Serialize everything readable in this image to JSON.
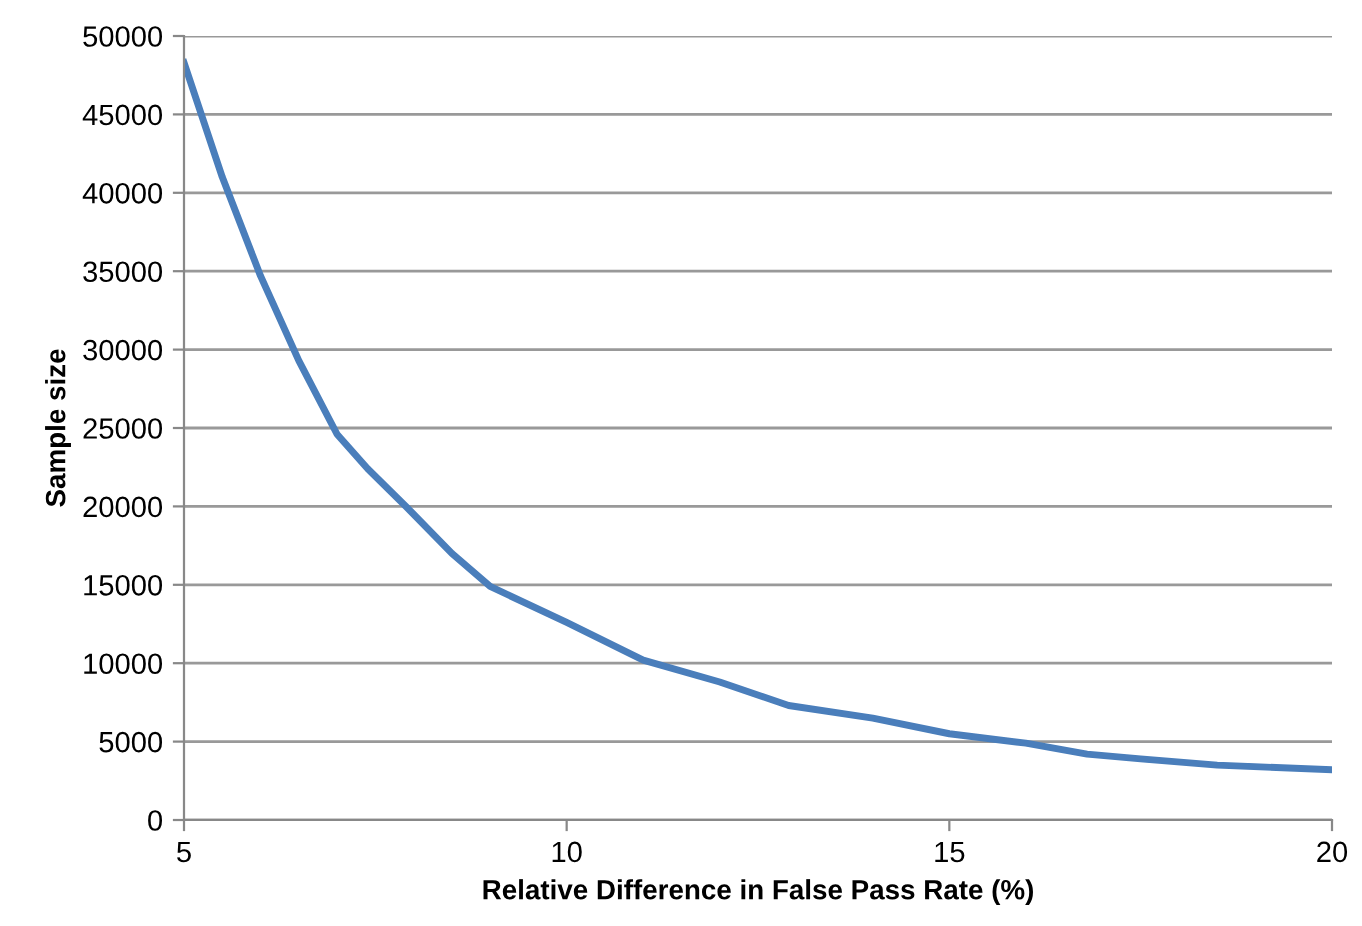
{
  "chart_data": {
    "type": "line",
    "xlabel": "Relative Difference in False Pass Rate (%)",
    "ylabel": "Sample size",
    "x": [
      5,
      5.5,
      6,
      6.5,
      7,
      7.4,
      7.9,
      8.5,
      9,
      10,
      11,
      12,
      12.9,
      14,
      15,
      16,
      16.8,
      17.5,
      18.5,
      20
    ],
    "series": [
      {
        "color": "#4a7ebb",
        "values": [
          48300,
          41000,
          34700,
          29300,
          24600,
          22400,
          20000,
          17000,
          14900,
          12600,
          10200,
          8800,
          7300,
          6500,
          5500,
          4900,
          4200,
          3900,
          3500,
          3200
        ]
      }
    ],
    "xlim": [
      5,
      20
    ],
    "xticks": [
      5,
      10,
      15,
      20
    ],
    "ylim": [
      0,
      50000
    ],
    "yticks": [
      0,
      5000,
      10000,
      15000,
      20000,
      25000,
      30000,
      35000,
      40000,
      45000,
      50000
    ],
    "grid": "y",
    "legend": false,
    "marker": "none",
    "line_style": "solid"
  }
}
